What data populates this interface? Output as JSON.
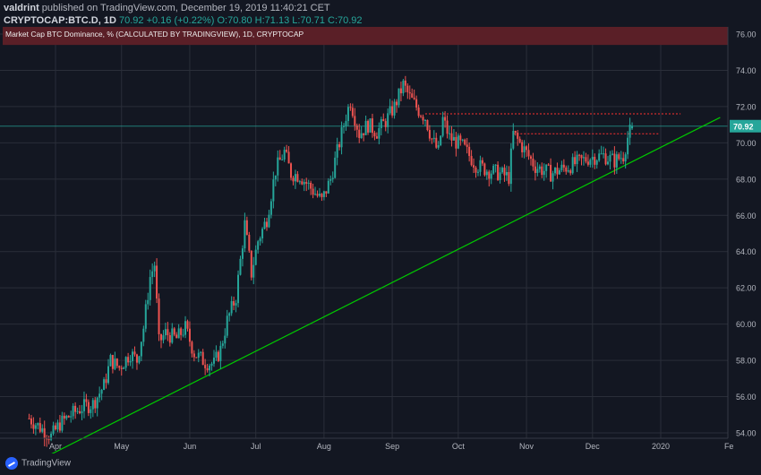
{
  "header": {
    "author": "valdrint",
    "published": "published on TradingView.com, December 19, 2019 11:40:21 CET",
    "symbol": "CRYPTOCAP:BTC.D, 1D",
    "price": "70.92",
    "change": "+0.16 (+0.22%)",
    "ohlc": "O:70.80 H:71.13 L:70.71 C:70.92"
  },
  "banner_text": "Market Cap BTC Dominance, % (CALCULATED BY TRADINGVIEW), 1D, CRYPTOCAP",
  "footer": {
    "brand": "TradingView"
  },
  "colors": {
    "up": "#26a69a",
    "down": "#ef5350",
    "trendline": "#00c800",
    "resistance": "#ff3030",
    "banner": "#5a1f27"
  },
  "chart_data": {
    "type": "candlestick",
    "x_tick_labels": [
      "Apr",
      "May",
      "Jun",
      "Jul",
      "Aug",
      "Sep",
      "Oct",
      "Nov",
      "Dec",
      "2020",
      "Fe"
    ],
    "y_tick_labels": [
      "54.00",
      "56.00",
      "58.00",
      "60.00",
      "62.00",
      "64.00",
      "66.00",
      "68.00",
      "70.00",
      "72.00",
      "74.00",
      "76.00"
    ],
    "ylim": [
      52.7,
      77.2
    ],
    "last_price": 70.92,
    "close_path": [
      [
        "2019-03-20",
        54.8
      ],
      [
        "2019-03-25",
        54.3
      ],
      [
        "2019-03-30",
        53.8
      ],
      [
        "2019-04-03",
        54.5
      ],
      [
        "2019-04-08",
        55.0
      ],
      [
        "2019-04-13",
        55.4
      ],
      [
        "2019-04-18",
        55.6
      ],
      [
        "2019-04-23",
        56.6
      ],
      [
        "2019-04-26",
        58.0
      ],
      [
        "2019-04-30",
        57.6
      ],
      [
        "2019-05-05",
        58.4
      ],
      [
        "2019-05-08",
        58.0
      ],
      [
        "2019-05-11",
        59.8
      ],
      [
        "2019-05-14",
        62.6
      ],
      [
        "2019-05-16",
        63.3
      ],
      [
        "2019-05-18",
        59.0
      ],
      [
        "2019-05-21",
        59.5
      ],
      [
        "2019-05-26",
        59.2
      ],
      [
        "2019-05-30",
        59.8
      ],
      [
        "2019-06-03",
        58.4
      ],
      [
        "2019-06-08",
        57.9
      ],
      [
        "2019-06-12",
        57.8
      ],
      [
        "2019-06-15",
        58.6
      ],
      [
        "2019-06-18",
        60.2
      ],
      [
        "2019-06-22",
        61.5
      ],
      [
        "2019-06-24",
        63.5
      ],
      [
        "2019-06-26",
        65.5
      ],
      [
        "2019-06-29",
        62.8
      ],
      [
        "2019-07-02",
        64.6
      ],
      [
        "2019-07-06",
        65.8
      ],
      [
        "2019-07-10",
        68.5
      ],
      [
        "2019-07-14",
        69.5
      ],
      [
        "2019-07-17",
        68.3
      ],
      [
        "2019-07-21",
        68.2
      ],
      [
        "2019-07-26",
        67.5
      ],
      [
        "2019-07-31",
        66.8
      ],
      [
        "2019-08-04",
        68.0
      ],
      [
        "2019-08-08",
        70.0
      ],
      [
        "2019-08-11",
        71.5
      ],
      [
        "2019-08-13",
        72.3
      ],
      [
        "2019-08-17",
        70.5
      ],
      [
        "2019-08-21",
        71.0
      ],
      [
        "2019-08-25",
        70.6
      ],
      [
        "2019-08-29",
        71.2
      ],
      [
        "2019-09-02",
        72.0
      ],
      [
        "2019-09-06",
        73.2
      ],
      [
        "2019-09-09",
        72.5
      ],
      [
        "2019-09-13",
        71.8
      ],
      [
        "2019-09-16",
        71.4
      ],
      [
        "2019-09-19",
        70.2
      ],
      [
        "2019-09-22",
        69.5
      ],
      [
        "2019-09-24",
        71.3
      ],
      [
        "2019-09-27",
        70.3
      ],
      [
        "2019-10-03",
        69.8
      ],
      [
        "2019-10-09",
        68.8
      ],
      [
        "2019-10-14",
        68.5
      ],
      [
        "2019-10-20",
        68.3
      ],
      [
        "2019-10-24",
        68.1
      ],
      [
        "2019-10-26",
        70.5
      ],
      [
        "2019-10-30",
        69.8
      ],
      [
        "2019-11-05",
        68.7
      ],
      [
        "2019-11-12",
        68.3
      ],
      [
        "2019-11-18",
        68.6
      ],
      [
        "2019-11-24",
        68.9
      ],
      [
        "2019-11-30",
        69.2
      ],
      [
        "2019-12-06",
        69.3
      ],
      [
        "2019-12-11",
        69.0
      ],
      [
        "2019-12-15",
        69.3
      ],
      [
        "2019-12-17",
        70.3
      ],
      [
        "2019-12-19",
        70.92
      ]
    ],
    "trendline": [
      [
        "2019-03-28",
        52.7
      ],
      [
        "2020-01-28",
        71.4
      ]
    ],
    "resistance_lines": [
      {
        "start": "2019-09-16",
        "end": "2020-01-10",
        "value": 71.6
      },
      {
        "start": "2019-10-26",
        "end": "2019-12-31",
        "value": 70.5
      }
    ],
    "banner_range": [
      75.4,
      77.2
    ]
  }
}
